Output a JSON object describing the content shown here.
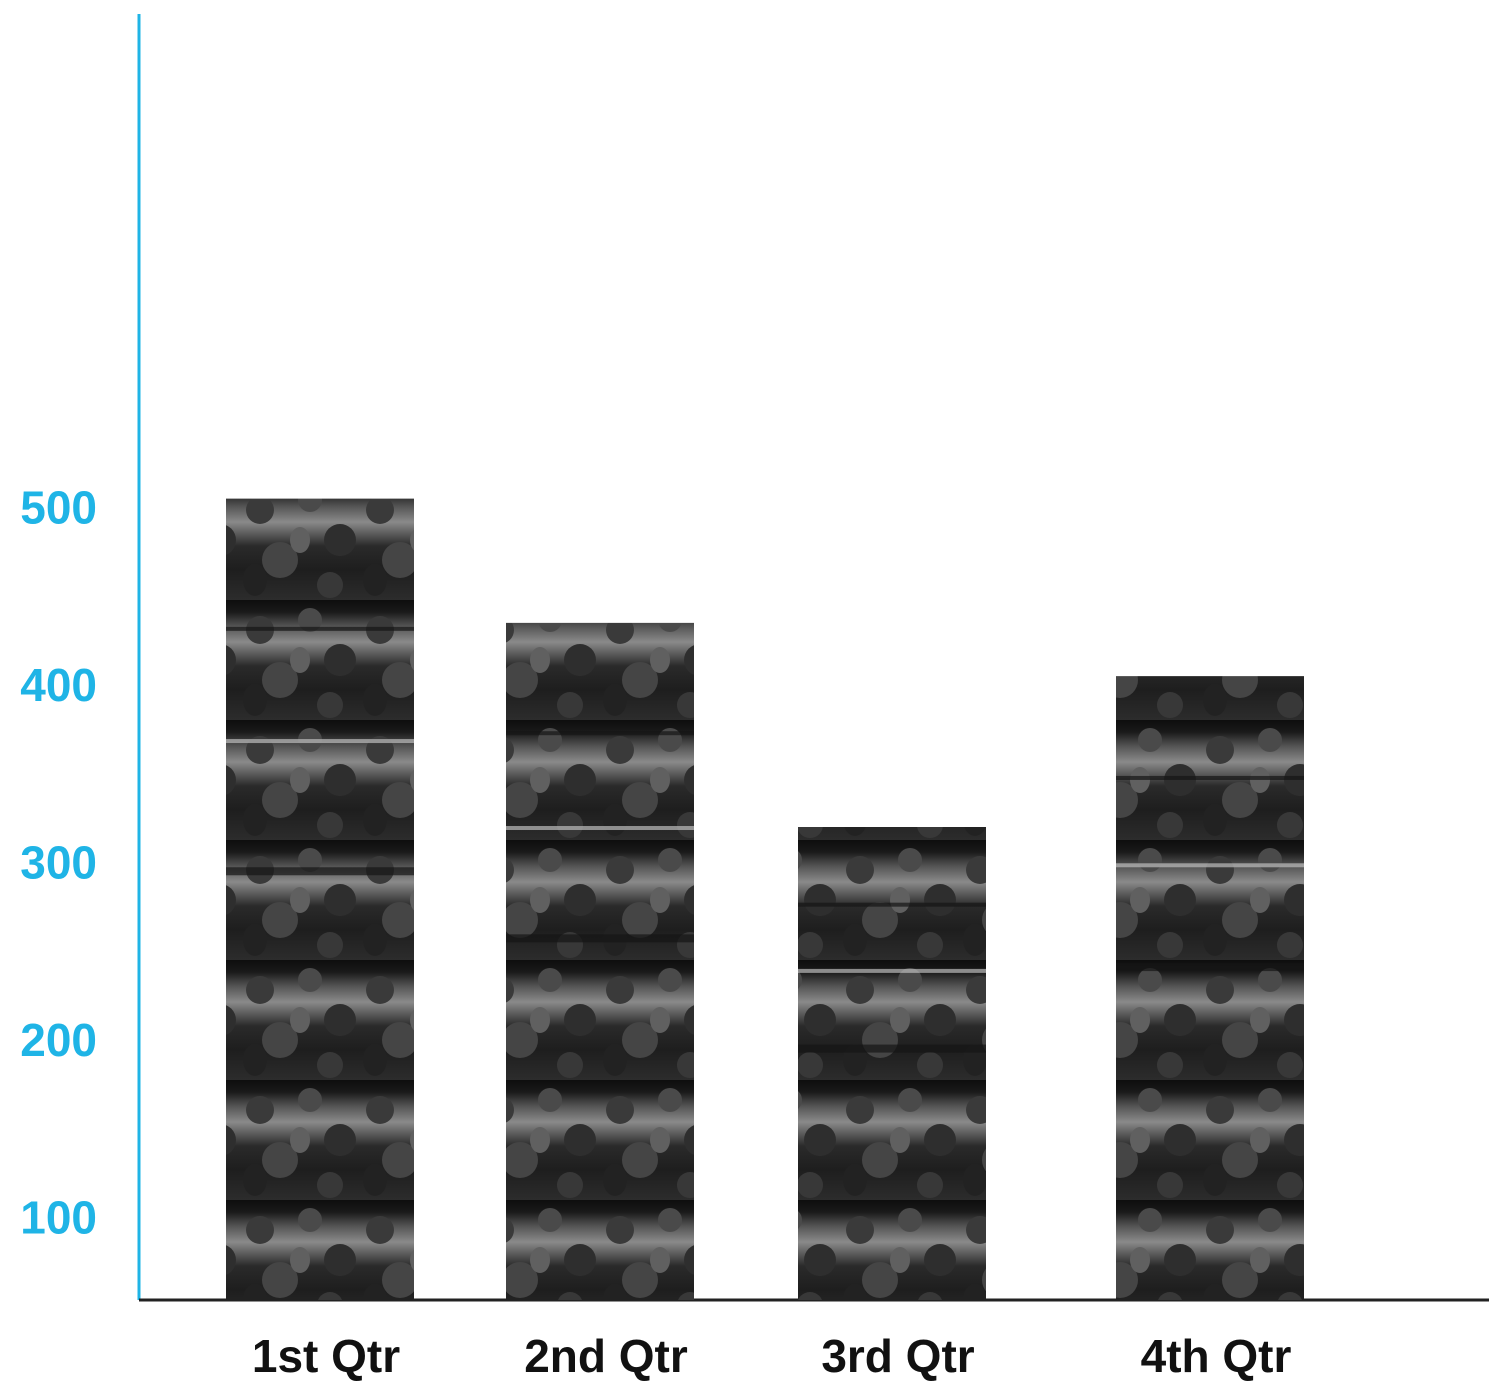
{
  "chart_data": {
    "type": "bar",
    "title": "",
    "xlabel": "",
    "ylabel": "",
    "categories": [
      "1st Qtr",
      "2nd Qtr",
      "3rd Qtr",
      "4th Qtr"
    ],
    "values": [
      505,
      435,
      320,
      405
    ],
    "yticks": [
      "100",
      "200",
      "300",
      "400",
      "500"
    ],
    "ylim": [
      0,
      560
    ],
    "grid": false,
    "legend": "none",
    "bar_fill": "black-and-white crowd photograph",
    "colors": {
      "axis": "#1fb4e6",
      "tick_labels": "#1fb4e6",
      "category_labels": "#111111",
      "x_axis_line": "#222222"
    }
  }
}
